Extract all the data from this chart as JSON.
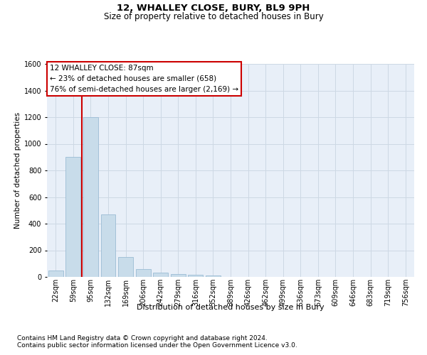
{
  "title": "12, WHALLEY CLOSE, BURY, BL9 9PH",
  "subtitle": "Size of property relative to detached houses in Bury",
  "xlabel": "Distribution of detached houses by size in Bury",
  "ylabel": "Number of detached properties",
  "footnote1": "Contains HM Land Registry data © Crown copyright and database right 2024.",
  "footnote2": "Contains public sector information licensed under the Open Government Licence v3.0.",
  "annotation_line1": "12 WHALLEY CLOSE: 87sqm",
  "annotation_line2": "← 23% of detached houses are smaller (658)",
  "annotation_line3": "76% of semi-detached houses are larger (2,169) →",
  "bar_labels": [
    "22sqm",
    "59sqm",
    "95sqm",
    "132sqm",
    "169sqm",
    "206sqm",
    "242sqm",
    "279sqm",
    "316sqm",
    "352sqm",
    "389sqm",
    "426sqm",
    "462sqm",
    "499sqm",
    "536sqm",
    "573sqm",
    "609sqm",
    "646sqm",
    "683sqm",
    "719sqm",
    "756sqm"
  ],
  "bar_values": [
    50,
    900,
    1200,
    470,
    150,
    60,
    30,
    20,
    15,
    10,
    0,
    0,
    0,
    0,
    0,
    0,
    0,
    0,
    0,
    0,
    0
  ],
  "bar_color": "#c8dcea",
  "bar_edge_color": "#9bbcd4",
  "grid_color": "#cdd8e4",
  "background_color": "#e8eff8",
  "vline_color": "#cc0000",
  "vline_x": 1.5,
  "ylim_max": 1600,
  "yticks": [
    0,
    200,
    400,
    600,
    800,
    1000,
    1200,
    1400,
    1600
  ],
  "title_fontsize": 9.5,
  "subtitle_fontsize": 8.5,
  "xlabel_fontsize": 8,
  "ylabel_fontsize": 7.5,
  "tick_fontsize": 7,
  "annotation_fontsize": 7.5,
  "footnote_fontsize": 6.5
}
